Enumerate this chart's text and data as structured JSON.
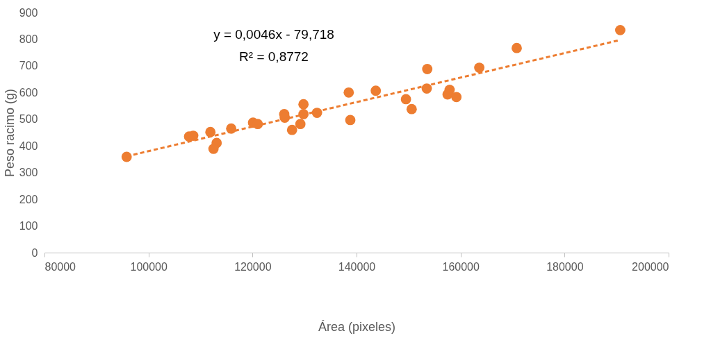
{
  "chart_data": {
    "type": "scatter",
    "xlabel": "Área (pixeles)",
    "ylabel": "Peso racimo (g)",
    "xlim": [
      80000,
      200000
    ],
    "xticks": [
      80000,
      100000,
      120000,
      140000,
      160000,
      180000,
      200000
    ],
    "ylim": [
      0,
      900
    ],
    "yticks": [
      0,
      100,
      200,
      300,
      400,
      500,
      600,
      700,
      800,
      900
    ],
    "grid": false,
    "marker": "circle",
    "annotations": [
      "y = 0,0046x - 79,718",
      "R² = 0,8772"
    ],
    "series": [
      {
        "color": "#ed7d31",
        "x": [
          95800,
          107800,
          108600,
          111900,
          113100,
          112500,
          115900,
          120100,
          121000,
          126100,
          126200,
          127600,
          129200,
          129800,
          129800,
          132400,
          138800,
          190700,
          170800,
          163600,
          153600,
          138500,
          143700,
          149500,
          150600,
          153500,
          157900,
          157500,
          159200
        ],
        "values": [
          359,
          435,
          438,
          452,
          411,
          389,
          465,
          487,
          482,
          519,
          506,
          460,
          482,
          519,
          556,
          524,
          497,
          834,
          767,
          693,
          688,
          600,
          607,
          575,
          538,
          615,
          610,
          593,
          583
        ]
      },
      {
        "type": "line",
        "color": "#ed7d31",
        "line_style": "dashed",
        "marker": "none",
        "x": [
          95800,
          190700
        ],
        "values": [
          361,
          797
        ]
      }
    ]
  }
}
